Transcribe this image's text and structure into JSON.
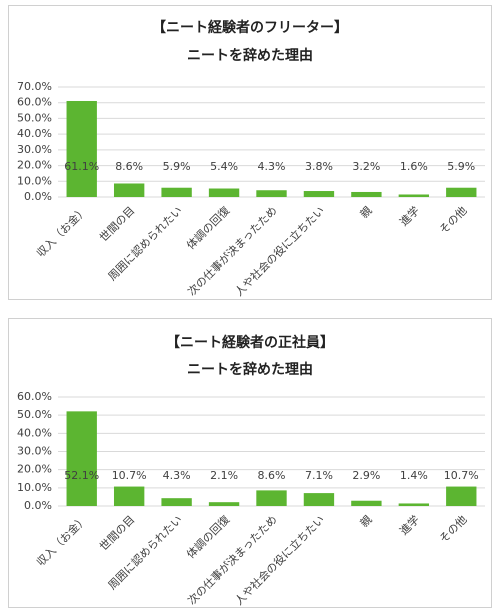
{
  "chart_data": [
    {
      "type": "bar",
      "title": "【ニート経験者のフリーター】",
      "subtitle": "ニートを辞めた理由",
      "categories": [
        "収入（お金）",
        "世間の目",
        "周囲に認められたい",
        "体調の回復",
        "次の仕事が決まったため",
        "人や社会の役に立ちたい",
        "親",
        "進学",
        "その他"
      ],
      "values": [
        61.1,
        8.6,
        5.9,
        5.4,
        4.3,
        3.8,
        3.2,
        1.6,
        5.9
      ],
      "value_labels": [
        "61.1%",
        "8.6%",
        "5.9%",
        "5.4%",
        "4.3%",
        "3.8%",
        "3.2%",
        "1.6%",
        "5.9%"
      ],
      "color": "#5cb531",
      "ylim": [
        0,
        70
      ],
      "yticks": [
        {
          "value": 0,
          "label": "0.0%"
        },
        {
          "value": 10,
          "label": "10.0%"
        },
        {
          "value": 20,
          "label": "20.0%"
        },
        {
          "value": 30,
          "label": "30.0%"
        },
        {
          "value": 40,
          "label": "40.0%"
        },
        {
          "value": 50,
          "label": "50.0%"
        },
        {
          "value": 60,
          "label": "60.0%"
        },
        {
          "value": 70,
          "label": "70.0%"
        }
      ],
      "grid": true
    },
    {
      "type": "bar",
      "title": "【ニート経験者の正社員】",
      "subtitle": "ニートを辞めた理由",
      "categories": [
        "収入（お金）",
        "世間の目",
        "周囲に認められたい",
        "体調の回復",
        "次の仕事が決まったため",
        "人や社会の役に立ちたい",
        "親",
        "進学",
        "その他"
      ],
      "values": [
        52.1,
        10.7,
        4.3,
        2.1,
        8.6,
        7.1,
        2.9,
        1.4,
        10.7
      ],
      "value_labels": [
        "52.1%",
        "10.7%",
        "4.3%",
        "2.1%",
        "8.6%",
        "7.1%",
        "2.9%",
        "1.4%",
        "10.7%"
      ],
      "color": "#5cb531",
      "ylim": [
        0,
        60
      ],
      "yticks": [
        {
          "value": 0,
          "label": "0.0%"
        },
        {
          "value": 10,
          "label": "10.0%"
        },
        {
          "value": 20,
          "label": "20.0%"
        },
        {
          "value": 30,
          "label": "30.0%"
        },
        {
          "value": 40,
          "label": "40.0%"
        },
        {
          "value": 50,
          "label": "50.0%"
        },
        {
          "value": 60,
          "label": "60.0%"
        }
      ],
      "grid": true
    }
  ]
}
